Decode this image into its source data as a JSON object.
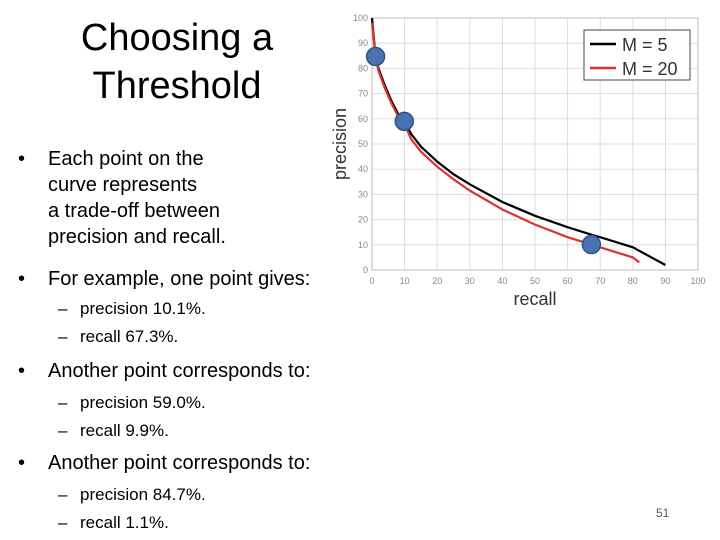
{
  "slide": {
    "title_line1": "Choosing a",
    "title_line2": "Threshold",
    "bullet1_lines": [
      "Each point on the",
      "curve represents",
      "a trade-off between",
      "precision and recall."
    ],
    "bullet2": "For example, one point gives:",
    "bullet2_sub": [
      "precision 10.1%.",
      "recall 67.3%."
    ],
    "bullet3": "Another point corresponds to:",
    "bullet3_sub": [
      "precision 59.0%.",
      "recall 9.9%."
    ],
    "bullet4": "Another point corresponds to:",
    "bullet4_sub": [
      "precision 84.7%.",
      "recall 1.1%."
    ],
    "page_number": "51"
  },
  "chart_data": {
    "type": "line",
    "xlabel": "recall",
    "ylabel": "precision",
    "xlim": [
      0,
      100
    ],
    "ylim": [
      0,
      100
    ],
    "xticks": [
      0,
      10,
      20,
      30,
      40,
      50,
      60,
      70,
      80,
      90,
      100
    ],
    "yticks": [
      0,
      10,
      20,
      30,
      40,
      50,
      60,
      70,
      80,
      90,
      100
    ],
    "grid": true,
    "legend_position": "top-right",
    "series": [
      {
        "name": "M = 5",
        "color": "#000000",
        "x": [
          0,
          0.5,
          1.1,
          2,
          4,
          6,
          8,
          9.9,
          12,
          15,
          20,
          25,
          30,
          40,
          50,
          60,
          67.3,
          70,
          80,
          90
        ],
        "y": [
          100,
          93,
          84.7,
          80,
          73,
          67,
          62,
          59,
          54,
          49,
          43,
          38,
          34,
          27,
          21.5,
          17,
          14,
          13,
          9,
          2
        ]
      },
      {
        "name": "M = 20",
        "color": "#e03030",
        "x": [
          0,
          0.5,
          1.1,
          2,
          4,
          6,
          8,
          9.9,
          12,
          15,
          20,
          25,
          30,
          40,
          50,
          60,
          67.3,
          70,
          80,
          82
        ],
        "y": [
          98,
          92,
          84.7,
          79,
          72,
          66,
          61,
          58,
          52,
          47,
          41,
          36,
          31.5,
          24,
          18,
          13,
          10.1,
          9,
          5,
          3
        ]
      }
    ],
    "highlighted_points": [
      {
        "x": 1.1,
        "y": 84.7
      },
      {
        "x": 9.9,
        "y": 59.0
      },
      {
        "x": 67.3,
        "y": 10.1
      }
    ],
    "colors": {
      "grid": "#dddddd",
      "axis_text": "#888888",
      "point_fill": "#4a72b0",
      "point_stroke": "#2e5386"
    }
  }
}
